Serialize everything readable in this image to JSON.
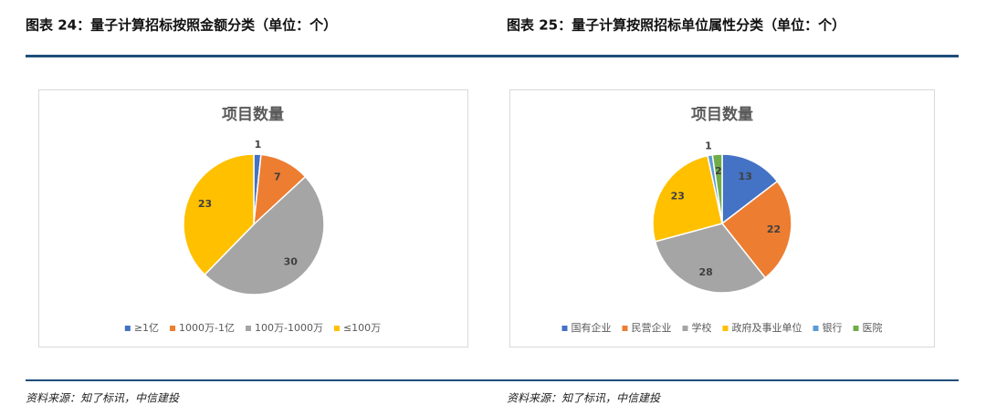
{
  "figures": [
    {
      "caption": "图表 24：量子计算招标按照金额分类（单位：个）",
      "source": "资料来源：知了标讯，中信建投"
    },
    {
      "caption": "图表 25：量子计算按照招标单位属性分类（单位：个）",
      "source": "资料来源：知了标讯，中信建投"
    }
  ],
  "chart_data": [
    {
      "type": "pie",
      "title": "项目数量",
      "categories": [
        "≥1亿",
        "1000万-1亿",
        "100万-1000万",
        "≤100万"
      ],
      "values": [
        1,
        7,
        30,
        23
      ],
      "colors": [
        "#4472c4",
        "#ed7d31",
        "#a5a5a5",
        "#ffc000"
      ]
    },
    {
      "type": "pie",
      "title": "项目数量",
      "categories": [
        "国有企业",
        "民营企业",
        "学校",
        "政府及事业单位",
        "银行",
        "医院"
      ],
      "values": [
        13,
        22,
        28,
        23,
        1,
        2
      ],
      "colors": [
        "#4472c4",
        "#ed7d31",
        "#a5a5a5",
        "#ffc000",
        "#5b9bd5",
        "#70ad47"
      ]
    }
  ]
}
